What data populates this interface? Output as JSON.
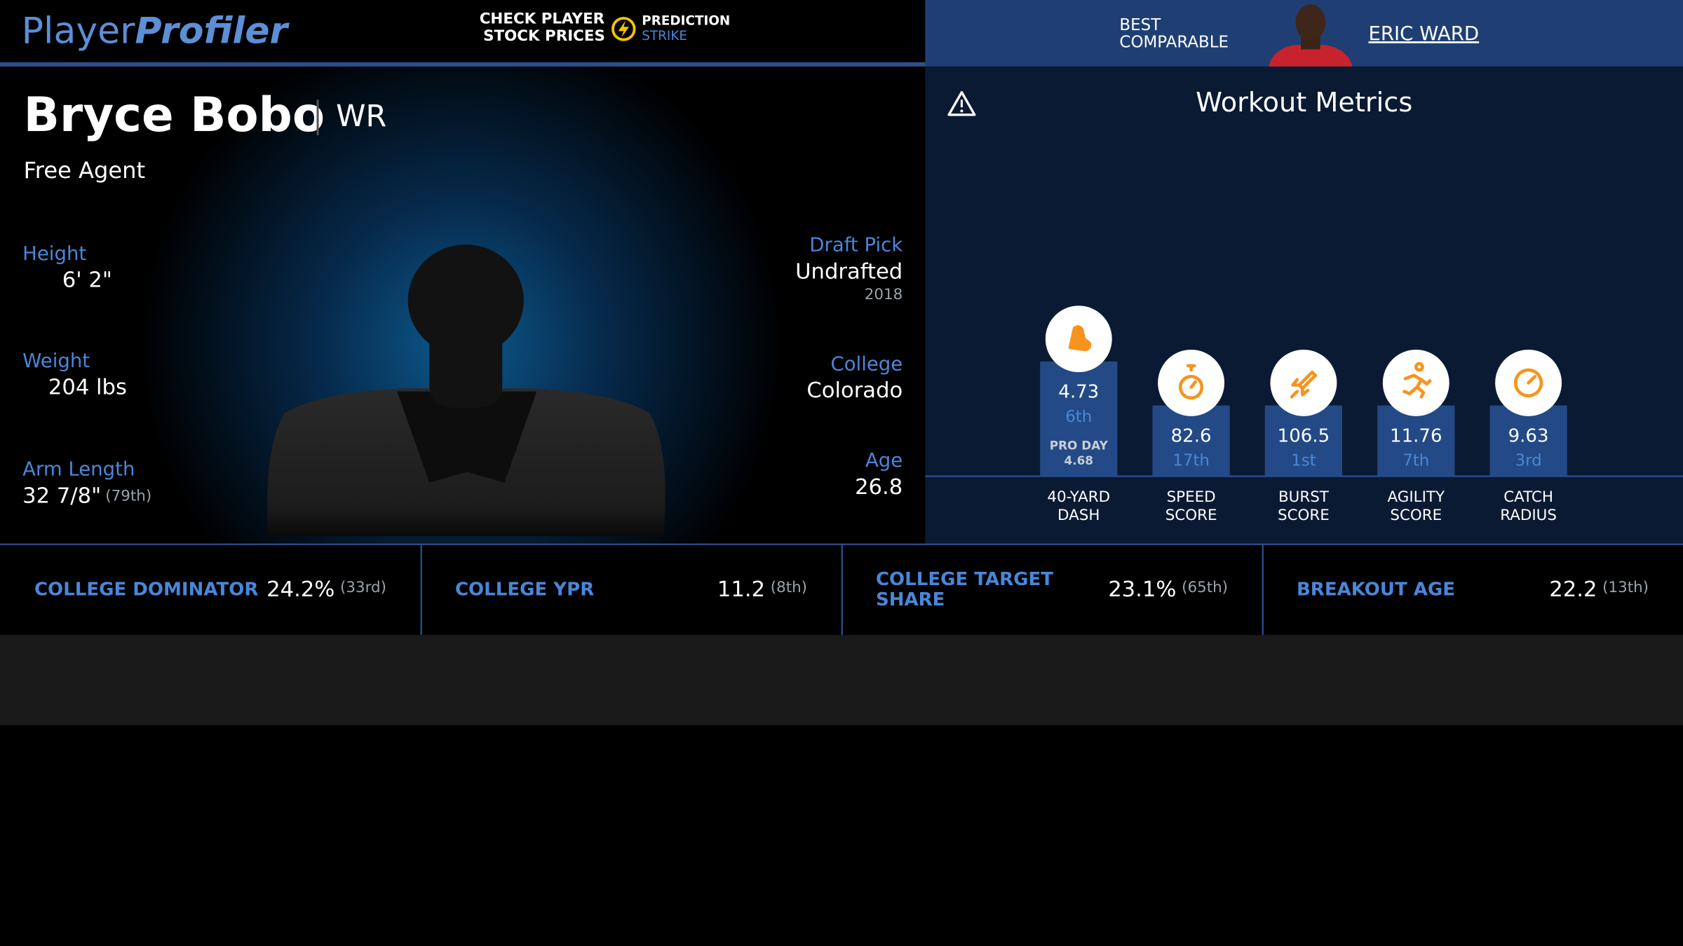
{
  "header": {
    "logo_first": "Player",
    "logo_second": "Profiler",
    "promo_line_1": "CHECK PLAYER",
    "promo_line_2": "STOCK PRICES",
    "promo_brand_1": "PREDICTION",
    "promo_brand_2": "STRIKE",
    "comparable_line_1": "BEST",
    "comparable_line_2": "COMPARABLE",
    "comparable_name": "ERIC WARD"
  },
  "player": {
    "name": "Bryce Bobo",
    "position": "WR",
    "team": "Free Agent",
    "height_label": "Height",
    "height": "6' 2\"",
    "weight_label": "Weight",
    "weight": "204 lbs",
    "arm_label": "Arm Length",
    "arm": "32 7/8\"",
    "arm_rank": "(79th)",
    "draft_label": "Draft Pick",
    "draft": "Undrafted",
    "draft_year": "2018",
    "college_label": "College",
    "college": "Colorado",
    "age_label": "Age",
    "age": 26.8
  },
  "workout": {
    "title": "Workout Metrics",
    "metrics": [
      {
        "value": 4.73,
        "rank": "6th",
        "note": "PRO DAY",
        "note_value": 4.68,
        "label": [
          "40-YARD",
          "DASH"
        ]
      },
      {
        "value": 82.6,
        "rank": "17th",
        "label": [
          "SPEED",
          "SCORE"
        ]
      },
      {
        "value": 106.5,
        "rank": "1st",
        "label": [
          "BURST",
          "SCORE"
        ]
      },
      {
        "value": 11.76,
        "rank": "7th",
        "label": [
          "AGILITY",
          "SCORE"
        ]
      },
      {
        "value": 9.63,
        "rank": "3rd",
        "label": [
          "CATCH",
          "RADIUS"
        ]
      }
    ]
  },
  "college_stats": [
    {
      "label": [
        "COLLEGE DOMINATOR"
      ],
      "value": "24.2%",
      "rank": "(33rd)"
    },
    {
      "label": [
        "COLLEGE YPR"
      ],
      "value": 11.2,
      "rank": "(8th)"
    },
    {
      "label": [
        "COLLEGE TARGET",
        "SHARE"
      ],
      "value": "23.1%",
      "rank": "(65th)"
    },
    {
      "label": [
        "BREAKOUT AGE"
      ],
      "value": 22.2,
      "rank": "(13th)"
    }
  ]
}
